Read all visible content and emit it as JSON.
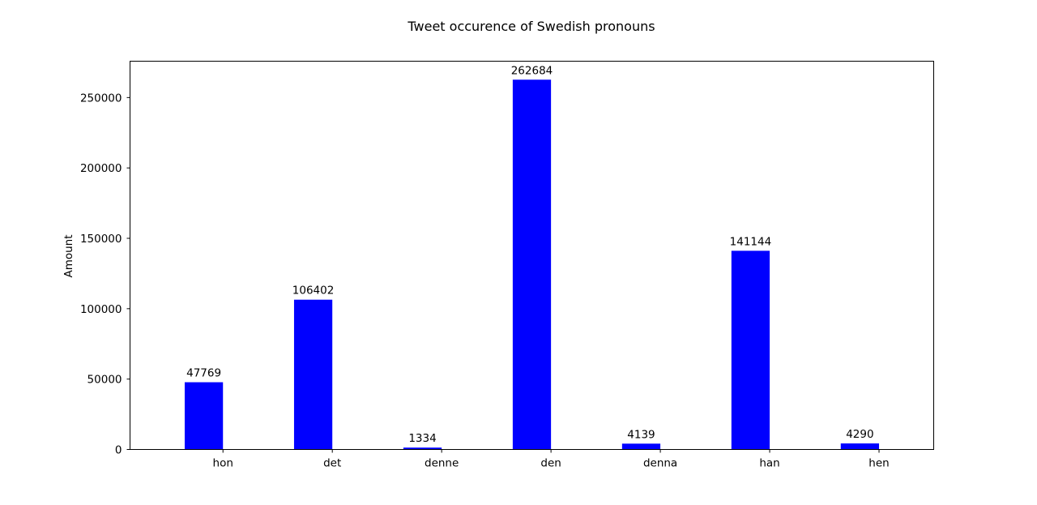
{
  "chart_data": {
    "type": "bar",
    "title": "Tweet occurence of Swedish pronouns",
    "xlabel": "",
    "ylabel": "Amount",
    "categories": [
      "hon",
      "det",
      "denne",
      "den",
      "denna",
      "han",
      "hen"
    ],
    "values": [
      47769,
      106402,
      1334,
      262684,
      4139,
      141144,
      4290
    ],
    "data_labels": [
      "47769",
      "106402",
      "1334",
      "262684",
      "4139",
      "141144",
      "4290"
    ],
    "y_ticks": [
      0,
      50000,
      100000,
      150000,
      200000,
      250000
    ],
    "y_tick_labels": [
      "0",
      "50000",
      "100000",
      "150000",
      "200000",
      "250000"
    ],
    "ylim": [
      0,
      275818
    ],
    "bar_color": "#0000ff",
    "grid": false,
    "legend": "none"
  }
}
